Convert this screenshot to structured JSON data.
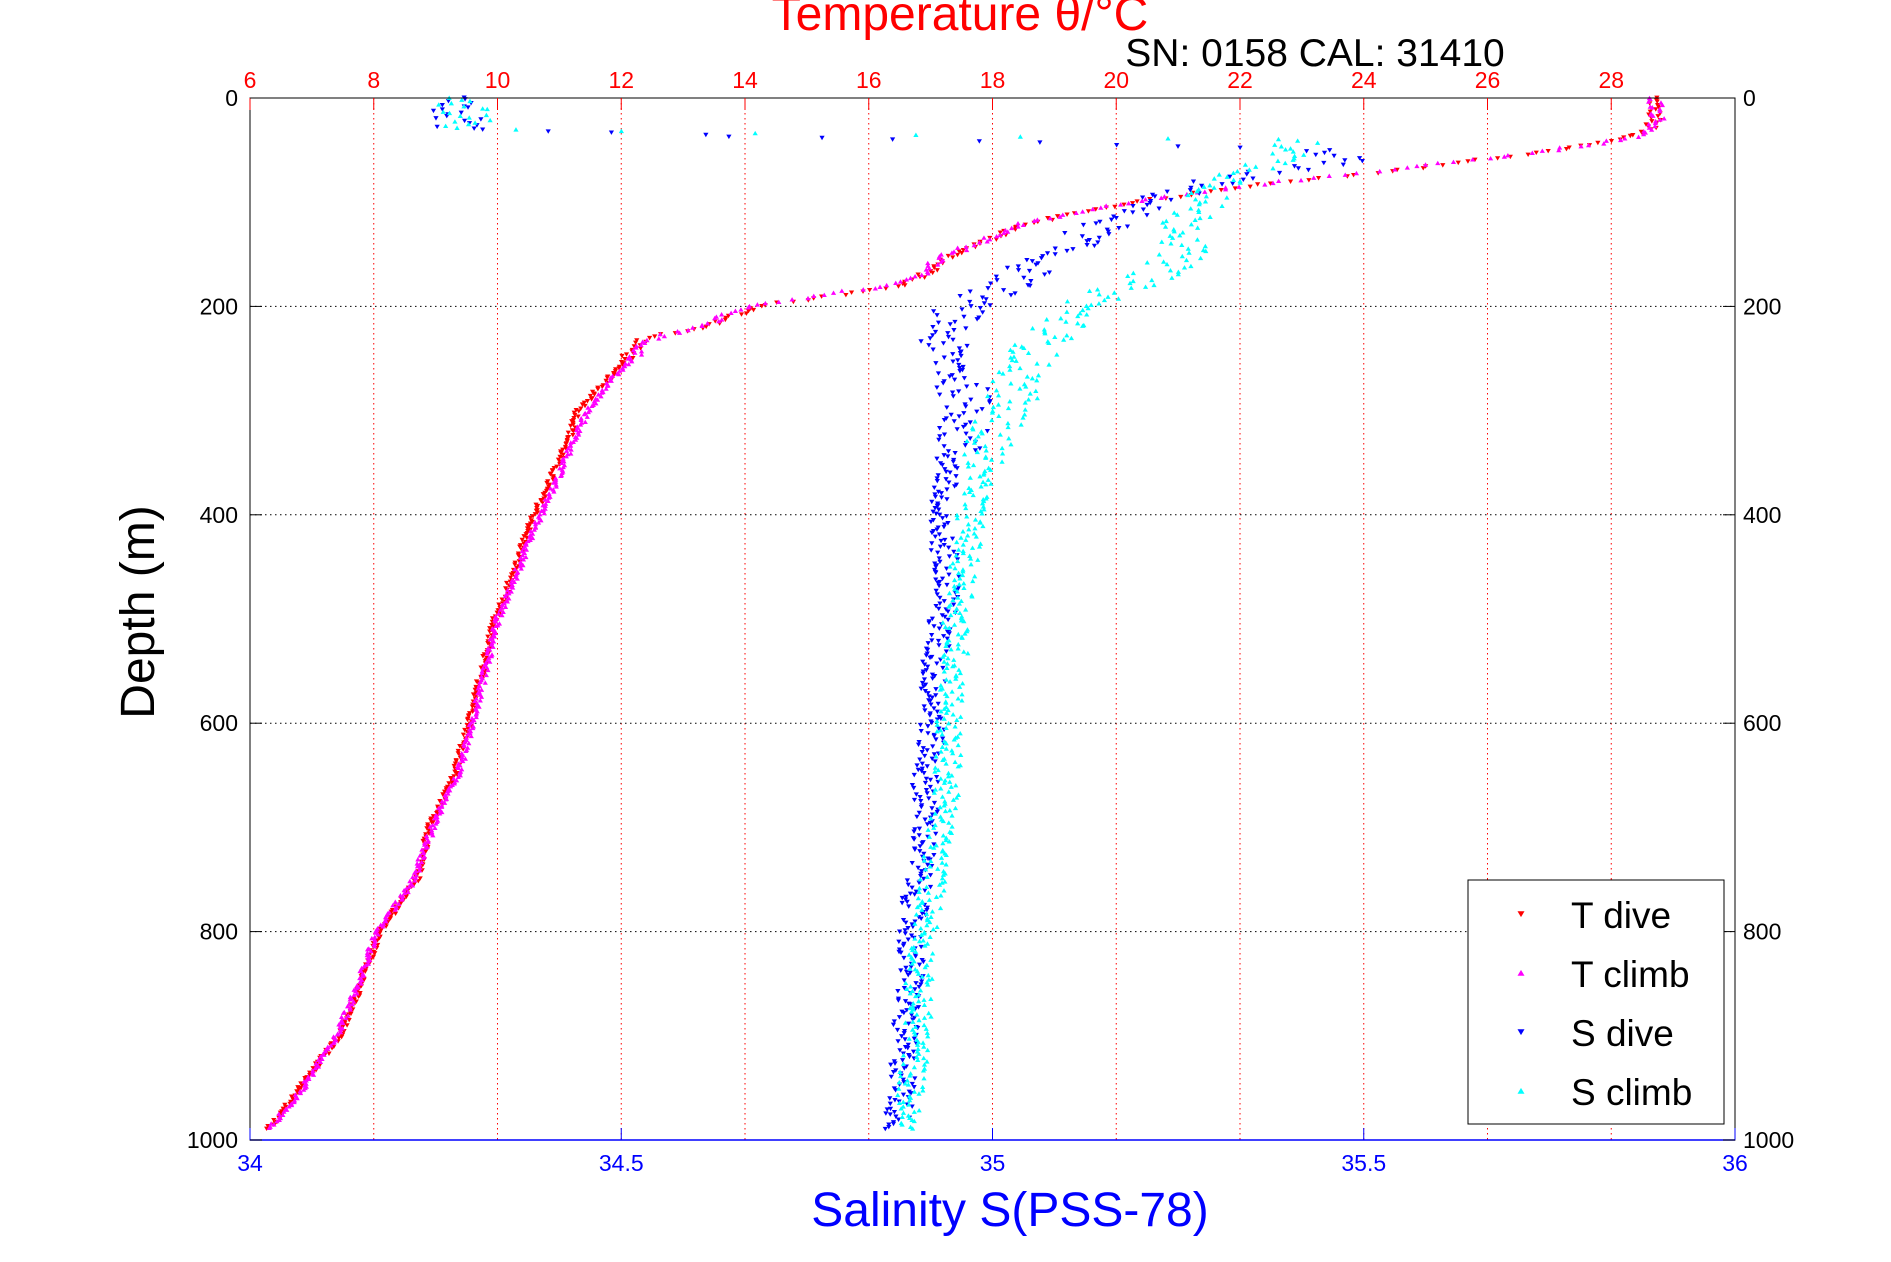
{
  "chart_data": {
    "type": "scatter",
    "title": "Temperature θ/°C",
    "subtitle": "SN: 0158  CAL: 31410",
    "ylabel": "Depth (m)",
    "xlabel": "Salinity S(PSS-78)",
    "top_axis": {
      "label": "Temperature θ/°C",
      "range": [
        6,
        30
      ],
      "ticks": [
        "6",
        "8",
        "10",
        "12",
        "14",
        "16",
        "18",
        "20",
        "22",
        "24",
        "26",
        "28"
      ]
    },
    "bottom_axis": {
      "label": "Salinity S(PSS-78)",
      "range": [
        34,
        36
      ],
      "ticks": [
        "34",
        "34.5",
        "35",
        "35.5",
        "36"
      ]
    },
    "y_axis": {
      "label": "Depth (m)",
      "range": [
        0,
        1000
      ],
      "reversed": true,
      "ticks": [
        "0",
        "200",
        "400",
        "600",
        "800",
        "1000"
      ]
    },
    "grid": true,
    "legend_position": "bottom-right",
    "colors": {
      "temperature_axis": "#ff0000",
      "salinity_axis": "#0000ff",
      "t_dive": "#ff0000",
      "t_climb": "#ff00ff",
      "s_dive": "#0000ff",
      "s_climb": "#00ffff"
    },
    "series": [
      {
        "name": "T dive",
        "axis": "temperature",
        "color": "#ff0000",
        "marker": "triangle-down",
        "profile": [
          [
            0,
            28.7
          ],
          [
            10,
            28.7
          ],
          [
            20,
            28.7
          ],
          [
            30,
            28.6
          ],
          [
            40,
            28.1
          ],
          [
            50,
            27.2
          ],
          [
            60,
            25.8
          ],
          [
            70,
            24.5
          ],
          [
            80,
            22.8
          ],
          [
            90,
            21.5
          ],
          [
            100,
            20.3
          ],
          [
            110,
            19.4
          ],
          [
            120,
            18.6
          ],
          [
            130,
            18.2
          ],
          [
            140,
            17.8
          ],
          [
            150,
            17.4
          ],
          [
            160,
            17.1
          ],
          [
            170,
            16.9
          ],
          [
            180,
            16.5
          ],
          [
            190,
            15.4
          ],
          [
            200,
            14.2
          ],
          [
            210,
            13.8
          ],
          [
            220,
            13.4
          ],
          [
            230,
            12.4
          ],
          [
            240,
            12.2
          ],
          [
            250,
            12.1
          ],
          [
            260,
            11.9
          ],
          [
            270,
            11.8
          ],
          [
            280,
            11.6
          ],
          [
            290,
            11.5
          ],
          [
            300,
            11.3
          ],
          [
            320,
            11.2
          ],
          [
            340,
            11.05
          ],
          [
            360,
            10.9
          ],
          [
            380,
            10.75
          ],
          [
            400,
            10.6
          ],
          [
            420,
            10.45
          ],
          [
            450,
            10.3
          ],
          [
            480,
            10.1
          ],
          [
            500,
            9.95
          ],
          [
            550,
            9.75
          ],
          [
            600,
            9.55
          ],
          [
            650,
            9.3
          ],
          [
            700,
            8.9
          ],
          [
            750,
            8.7
          ],
          [
            800,
            8.1
          ],
          [
            850,
            7.8
          ],
          [
            900,
            7.45
          ],
          [
            950,
            6.8
          ],
          [
            990,
            6.3
          ]
        ]
      },
      {
        "name": "T climb",
        "axis": "temperature",
        "color": "#ff00ff",
        "marker": "triangle-up",
        "profile": [
          [
            0,
            28.7
          ],
          [
            10,
            28.75
          ],
          [
            20,
            28.75
          ],
          [
            30,
            28.7
          ],
          [
            40,
            28.2
          ],
          [
            50,
            27.0
          ],
          [
            60,
            25.6
          ],
          [
            70,
            24.3
          ],
          [
            80,
            22.7
          ],
          [
            90,
            21.4
          ],
          [
            100,
            20.2
          ],
          [
            110,
            19.3
          ],
          [
            120,
            18.5
          ],
          [
            130,
            18.1
          ],
          [
            140,
            17.7
          ],
          [
            150,
            17.3
          ],
          [
            160,
            17.0
          ],
          [
            170,
            16.8
          ],
          [
            180,
            16.3
          ],
          [
            190,
            15.2
          ],
          [
            200,
            14.0
          ],
          [
            210,
            13.6
          ],
          [
            220,
            13.3
          ],
          [
            230,
            12.5
          ],
          [
            240,
            12.3
          ],
          [
            250,
            12.2
          ],
          [
            260,
            12.0
          ],
          [
            270,
            11.85
          ],
          [
            280,
            11.7
          ],
          [
            290,
            11.6
          ],
          [
            300,
            11.45
          ],
          [
            320,
            11.3
          ],
          [
            340,
            11.15
          ],
          [
            360,
            11.0
          ],
          [
            380,
            10.85
          ],
          [
            400,
            10.7
          ],
          [
            420,
            10.55
          ],
          [
            450,
            10.35
          ],
          [
            480,
            10.15
          ],
          [
            500,
            10.0
          ],
          [
            550,
            9.8
          ],
          [
            600,
            9.6
          ],
          [
            650,
            9.35
          ],
          [
            700,
            8.95
          ],
          [
            750,
            8.65
          ],
          [
            800,
            8.05
          ],
          [
            850,
            7.75
          ],
          [
            900,
            7.4
          ],
          [
            950,
            6.85
          ],
          [
            990,
            6.3
          ]
        ]
      },
      {
        "name": "S dive",
        "axis": "salinity",
        "color": "#0000ff",
        "marker": "triangle-down",
        "profile": [
          [
            0,
            34.26
          ],
          [
            10,
            34.27
          ],
          [
            20,
            34.28
          ],
          [
            30,
            34.28
          ],
          [
            50,
            35.45
          ],
          [
            60,
            35.48
          ],
          [
            70,
            35.38
          ],
          [
            80,
            35.3
          ],
          [
            90,
            35.25
          ],
          [
            100,
            35.22
          ],
          [
            110,
            35.18
          ],
          [
            120,
            35.16
          ],
          [
            130,
            35.13
          ],
          [
            140,
            35.11
          ],
          [
            150,
            35.08
          ],
          [
            160,
            35.06
          ],
          [
            170,
            35.04
          ],
          [
            180,
            35.02
          ],
          [
            190,
            34.99
          ],
          [
            200,
            34.96
          ],
          [
            220,
            34.94
          ],
          [
            240,
            34.93
          ],
          [
            260,
            34.95
          ],
          [
            280,
            34.96
          ],
          [
            300,
            34.97
          ],
          [
            320,
            34.96
          ],
          [
            340,
            34.95
          ],
          [
            360,
            34.94
          ],
          [
            380,
            34.93
          ],
          [
            400,
            34.92
          ],
          [
            420,
            34.93
          ],
          [
            450,
            34.94
          ],
          [
            480,
            34.94
          ],
          [
            500,
            34.93
          ],
          [
            550,
            34.92
          ],
          [
            600,
            34.92
          ],
          [
            650,
            34.91
          ],
          [
            700,
            34.91
          ],
          [
            750,
            34.9
          ],
          [
            800,
            34.89
          ],
          [
            850,
            34.89
          ],
          [
            900,
            34.88
          ],
          [
            950,
            34.88
          ],
          [
            990,
            34.87
          ]
        ]
      },
      {
        "name": "S climb",
        "axis": "salinity",
        "color": "#00ffff",
        "marker": "triangle-up",
        "profile": [
          [
            0,
            34.28
          ],
          [
            10,
            34.29
          ],
          [
            20,
            34.29
          ],
          [
            30,
            34.29
          ],
          [
            40,
            35.4
          ],
          [
            50,
            35.42
          ],
          [
            60,
            35.38
          ],
          [
            70,
            35.35
          ],
          [
            80,
            35.32
          ],
          [
            90,
            35.3
          ],
          [
            100,
            35.28
          ],
          [
            110,
            35.27
          ],
          [
            120,
            35.26
          ],
          [
            130,
            35.27
          ],
          [
            140,
            35.26
          ],
          [
            150,
            35.25
          ],
          [
            160,
            35.24
          ],
          [
            170,
            35.22
          ],
          [
            180,
            35.18
          ],
          [
            190,
            35.15
          ],
          [
            200,
            35.12
          ],
          [
            220,
            35.09
          ],
          [
            240,
            35.06
          ],
          [
            260,
            35.04
          ],
          [
            280,
            35.03
          ],
          [
            300,
            35.02
          ],
          [
            320,
            35.0
          ],
          [
            340,
            34.99
          ],
          [
            360,
            34.98
          ],
          [
            380,
            34.98
          ],
          [
            400,
            34.97
          ],
          [
            420,
            34.97
          ],
          [
            450,
            34.96
          ],
          [
            480,
            34.96
          ],
          [
            500,
            34.95
          ],
          [
            550,
            34.95
          ],
          [
            600,
            34.94
          ],
          [
            650,
            34.94
          ],
          [
            700,
            34.93
          ],
          [
            750,
            34.92
          ],
          [
            800,
            34.91
          ],
          [
            850,
            34.9
          ],
          [
            900,
            34.9
          ],
          [
            950,
            34.89
          ],
          [
            990,
            34.88
          ]
        ]
      }
    ]
  }
}
